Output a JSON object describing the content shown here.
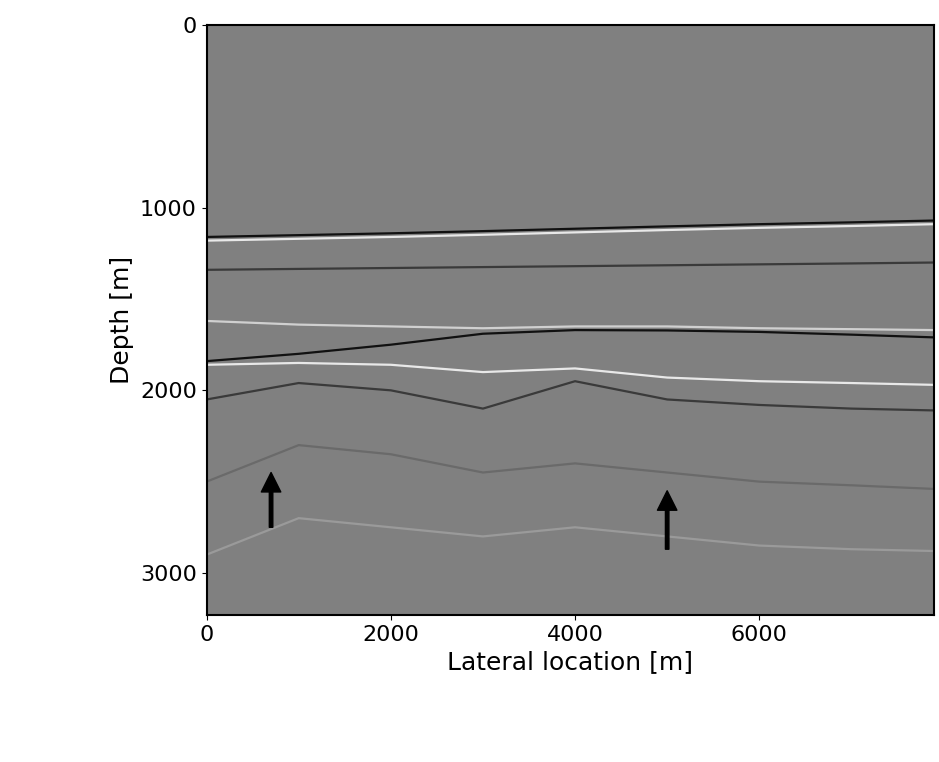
{
  "chart_data": {
    "type": "line",
    "xlabel": "Lateral location [m]",
    "ylabel": "Depth [m]",
    "color": "#808080",
    "line_style": "solid",
    "x": [
      0,
      1000,
      2000,
      3000,
      4000,
      5000,
      6000,
      7000,
      7900
    ],
    "series": [
      {
        "color": "#111111",
        "values": [
          1160,
          1150,
          1140,
          1128,
          1115,
          1102,
          1090,
          1080,
          1070
        ]
      },
      {
        "color": "#e8e8e8",
        "values": [
          1180,
          1170,
          1160,
          1148,
          1135,
          1122,
          1110,
          1100,
          1090
        ]
      },
      {
        "color": "#3a3a3a",
        "values": [
          1340,
          1335,
          1330,
          1325,
          1320,
          1315,
          1310,
          1305,
          1300
        ]
      },
      {
        "color": "#d0d0d0",
        "values": [
          1620,
          1640,
          1650,
          1660,
          1650,
          1650,
          1660,
          1665,
          1670
        ]
      },
      {
        "color": "#111111",
        "values": [
          1840,
          1800,
          1750,
          1690,
          1670,
          1672,
          1680,
          1695,
          1710
        ]
      },
      {
        "color": "#e8e8e8",
        "values": [
          1860,
          1850,
          1860,
          1900,
          1880,
          1930,
          1950,
          1960,
          1970
        ]
      },
      {
        "color": "#3a3a3a",
        "values": [
          2050,
          1960,
          2000,
          2100,
          1950,
          2050,
          2080,
          2100,
          2110
        ]
      },
      {
        "color": "#6a6a6a",
        "values": [
          2500,
          2300,
          2350,
          2450,
          2400,
          2450,
          2500,
          2520,
          2540
        ]
      },
      {
        "color": "#9a9a9a",
        "values": [
          2900,
          2700,
          2750,
          2800,
          2750,
          2800,
          2850,
          2870,
          2880
        ]
      }
    ],
    "annotations": [
      {
        "x": 700,
        "y": 2450,
        "from_y": 2750
      },
      {
        "x": 5000,
        "y": 2550,
        "from_y": 2870
      }
    ],
    "xlim": [
      0,
      7900
    ],
    "ylim": [
      3230,
      0
    ],
    "xticks": [
      0,
      2000,
      4000,
      6000
    ],
    "yticks": [
      0,
      1000,
      2000,
      3000
    ],
    "grid": false
  }
}
